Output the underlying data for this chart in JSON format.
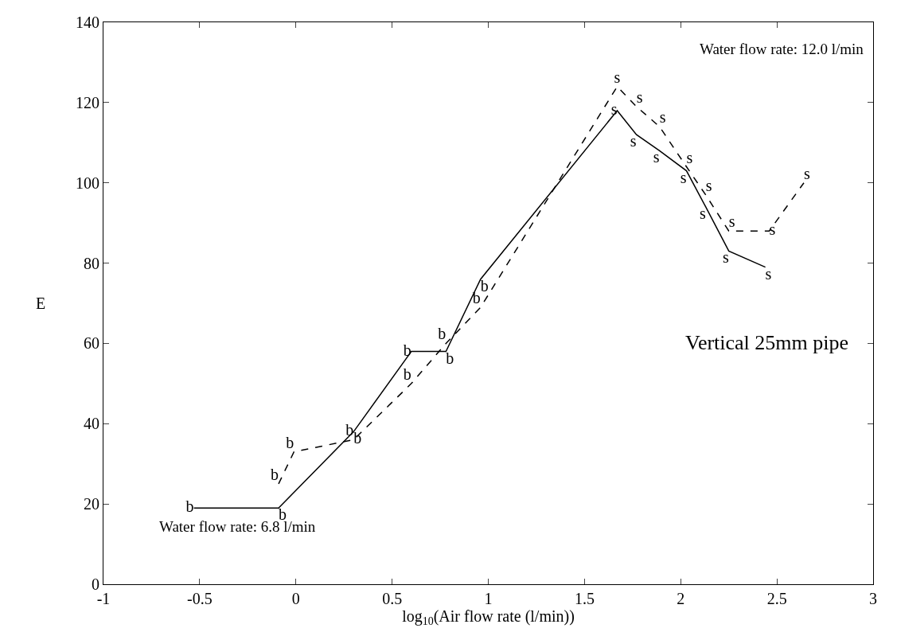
{
  "chart_data": {
    "type": "line",
    "xlabel": "log$_{10}$(Air flow rate (l/min))",
    "ylabel": "E",
    "xlim": [
      -1,
      3
    ],
    "xticks": [
      -1,
      -0.5,
      0,
      0.5,
      1,
      1.5,
      2,
      2.5,
      3
    ],
    "ylim": [
      0,
      140
    ],
    "yticks": [
      0,
      20,
      40,
      60,
      80,
      100,
      120,
      140
    ],
    "marker": "none",
    "series": [
      {
        "color": "#000000",
        "line_style": "solid",
        "x": [
          -0.53,
          -0.09,
          0.3,
          0.6,
          0.78,
          0.96,
          1.67,
          1.77,
          1.89,
          2.03,
          2.13,
          2.25,
          2.44
        ],
        "values": [
          19,
          19,
          38,
          58,
          58,
          76,
          118,
          112,
          108,
          103,
          94,
          83,
          79
        ],
        "value_labels": [
          "b",
          "b",
          "b",
          "b",
          "b",
          "b",
          "s",
          "s",
          "s",
          "s",
          "s",
          "s",
          "s"
        ]
      },
      {
        "color": "#000000",
        "line_style": "dashed",
        "x": [
          -0.09,
          -0.01,
          0.3,
          0.6,
          0.78,
          0.96,
          1.67,
          1.77,
          1.89,
          2.03,
          2.13,
          2.25,
          2.46,
          2.64
        ],
        "values": [
          25,
          33,
          36,
          50,
          60,
          69,
          124,
          119,
          114,
          104,
          97,
          88,
          88,
          100
        ],
        "value_labels": [
          "b",
          "b",
          "b",
          "b",
          "b",
          "b",
          "s",
          "s",
          "s",
          "s",
          "s",
          "s",
          "s",
          "s"
        ]
      }
    ],
    "annotations": [
      "Water flow rate: 12.0 l/min",
      "Water flow rate: 6.8 l/min",
      "Vertical 25mm pipe"
    ]
  }
}
